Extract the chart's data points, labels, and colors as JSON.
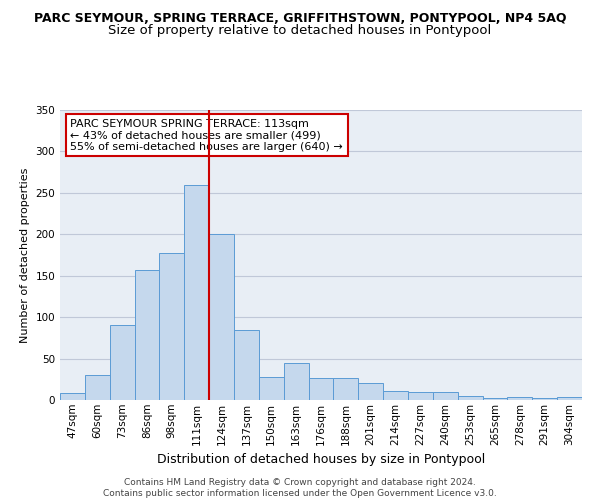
{
  "title": "PARC SEYMOUR, SPRING TERRACE, GRIFFITHSTOWN, PONTYPOOL, NP4 5AQ",
  "subtitle": "Size of property relative to detached houses in Pontypool",
  "xlabel": "Distribution of detached houses by size in Pontypool",
  "ylabel": "Number of detached properties",
  "categories": [
    "47sqm",
    "60sqm",
    "73sqm",
    "86sqm",
    "98sqm",
    "111sqm",
    "124sqm",
    "137sqm",
    "150sqm",
    "163sqm",
    "176sqm",
    "188sqm",
    "201sqm",
    "214sqm",
    "227sqm",
    "240sqm",
    "253sqm",
    "265sqm",
    "278sqm",
    "291sqm",
    "304sqm"
  ],
  "values": [
    8,
    30,
    90,
    157,
    178,
    260,
    200,
    85,
    28,
    45,
    27,
    26,
    20,
    11,
    10,
    10,
    5,
    3,
    4,
    3,
    4
  ],
  "bar_color": "#c5d8ed",
  "bar_edge_color": "#5b9bd5",
  "vline_x_index": 5,
  "vline_color": "#cc0000",
  "annotation_text": "PARC SEYMOUR SPRING TERRACE: 113sqm\n← 43% of detached houses are smaller (499)\n55% of semi-detached houses are larger (640) →",
  "annotation_box_color": "#ffffff",
  "annotation_box_edge": "#cc0000",
  "ylim": [
    0,
    350
  ],
  "yticks": [
    0,
    50,
    100,
    150,
    200,
    250,
    300,
    350
  ],
  "grid_color": "#c0c8d8",
  "background_color": "#e8eef5",
  "footnote": "Contains HM Land Registry data © Crown copyright and database right 2024.\nContains public sector information licensed under the Open Government Licence v3.0.",
  "title_fontsize": 9,
  "subtitle_fontsize": 9.5,
  "xlabel_fontsize": 9,
  "ylabel_fontsize": 8,
  "tick_fontsize": 7.5,
  "annot_fontsize": 8,
  "footnote_fontsize": 6.5
}
